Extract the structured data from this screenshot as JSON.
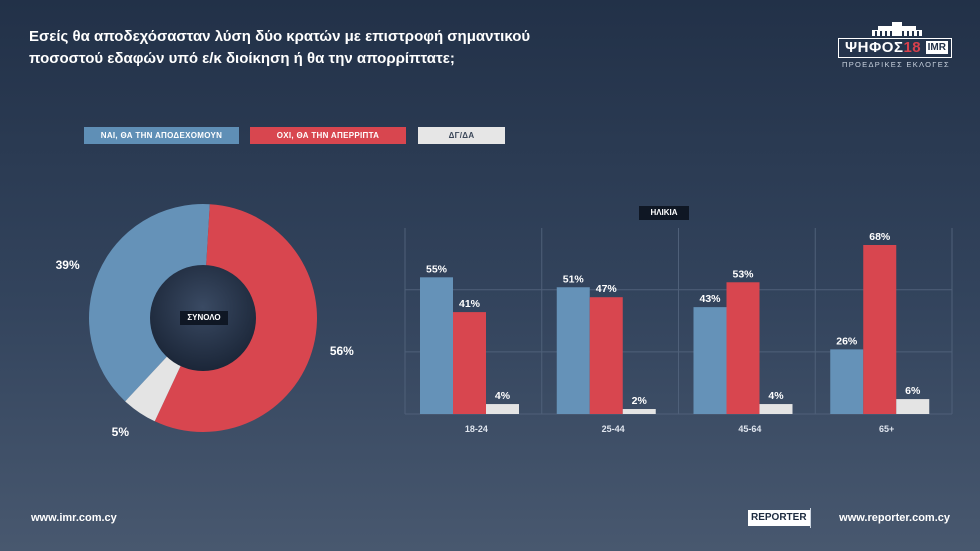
{
  "header": {
    "title_line1": "Εσείς θα αποδεχόσασταν λύση δύο κρατών με επιστροφή σημαντικού",
    "title_line2": "ποσοστού εδαφών υπό ε/κ διοίκηση ή θα την απορρίπτατε;"
  },
  "brand": {
    "name": "ΨΗΦΟΣ",
    "year": "18",
    "partner": "IMR",
    "subtitle": "ΠΡΟΕΔΡΙΚΕΣ ΕΚΛΟΓΕΣ"
  },
  "legend": {
    "yes": "ΝΑΙ, ΘΑ ΤΗΝ ΑΠΟΔΕΧΟΜΟΥΝ",
    "no": "ΟΧΙ, ΘΑ ΤΗΝ ΑΠΕΡΡΙΠΤΑ",
    "dk": "ΔΓ/ΔΑ"
  },
  "colors": {
    "yes": "#6592b8",
    "no": "#d8464f",
    "dk": "#e4e4e4",
    "center": "#1e2a3d"
  },
  "chart_data": [
    {
      "type": "pie",
      "center_label": "ΣΥΝΟΛΟ",
      "slices": [
        {
          "name": "ΝΑΙ, ΘΑ ΤΗΝ ΑΠΟΔΕΧΟΜΟΥΝ",
          "value": 39,
          "label": "39%"
        },
        {
          "name": "ΟΧΙ, ΘΑ ΤΗΝ ΑΠΕΡΡΙΠΤΑ",
          "value": 56,
          "label": "56%"
        },
        {
          "name": "ΔΓ/ΔΑ",
          "value": 5,
          "label": "5%"
        }
      ]
    },
    {
      "type": "bar",
      "group_label": "ΗΛΙΚΙΑ",
      "categories": [
        "18-24",
        "25-44",
        "45-64",
        "65+"
      ],
      "series": [
        {
          "name": "ΝΑΙ, ΘΑ ΤΗΝ ΑΠΟΔΕΧΟΜΟΥΝ",
          "values": [
            55,
            51,
            43,
            26
          ]
        },
        {
          "name": "ΟΧΙ, ΘΑ ΤΗΝ ΑΠΕΡΡΙΠΤΑ",
          "values": [
            41,
            47,
            53,
            68
          ]
        },
        {
          "name": "ΔΓ/ΔΑ",
          "values": [
            4,
            2,
            4,
            6
          ]
        }
      ],
      "ylim": [
        0,
        70
      ],
      "grid": true
    }
  ],
  "footer": {
    "left_url": "www.imr.com.cy",
    "reporter_logo": "REPORTER",
    "right_url": "www.reporter.com.cy"
  }
}
